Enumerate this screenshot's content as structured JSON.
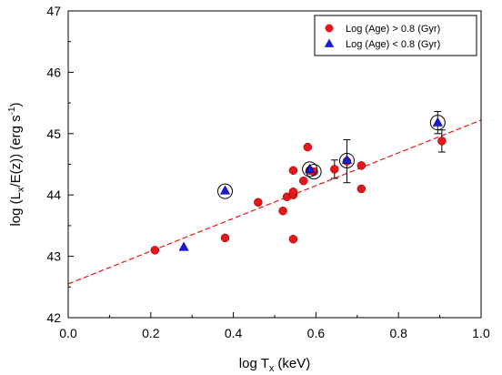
{
  "chart_data": {
    "type": "scatter",
    "xlabel_main": "log T",
    "xlabel_sub": "x",
    "xlabel_unit": "(keV)",
    "ylabel_parts": [
      "log (L",
      "x",
      "/E(z)) (erg s",
      "-1",
      ")"
    ],
    "xlim": [
      0.0,
      1.0
    ],
    "ylim": [
      42,
      47
    ],
    "xticks": [
      0.0,
      0.2,
      0.4,
      0.6,
      0.8,
      1.0
    ],
    "xtick_labels": [
      "0.0",
      "0.2",
      "0.4",
      "0.6",
      "0.8",
      "1.0"
    ],
    "yticks": [
      42,
      43,
      44,
      45,
      46,
      47
    ],
    "ytick_labels": [
      "42",
      "43",
      "44",
      "45",
      "46",
      "47"
    ],
    "grid": false,
    "legend_position": "top-right",
    "series": [
      {
        "name": "Log (Age) > 0.8  (Gyr)",
        "marker": "circle",
        "color": "#e8161b",
        "points": [
          {
            "x": 0.21,
            "y": 43.1
          },
          {
            "x": 0.38,
            "y": 43.3
          },
          {
            "x": 0.46,
            "y": 43.88
          },
          {
            "x": 0.52,
            "y": 43.74
          },
          {
            "x": 0.53,
            "y": 43.97
          },
          {
            "x": 0.545,
            "y": 43.28
          },
          {
            "x": 0.545,
            "y": 44.0
          },
          {
            "x": 0.545,
            "y": 44.05
          },
          {
            "x": 0.545,
            "y": 44.4
          },
          {
            "x": 0.57,
            "y": 44.23
          },
          {
            "x": 0.58,
            "y": 44.78
          },
          {
            "x": 0.585,
            "y": 44.4
          },
          {
            "x": 0.595,
            "y": 44.38
          },
          {
            "x": 0.645,
            "y": 44.42,
            "err": 0.15
          },
          {
            "x": 0.675,
            "y": 44.55,
            "err": 0.35
          },
          {
            "x": 0.71,
            "y": 44.1
          },
          {
            "x": 0.71,
            "y": 44.48
          },
          {
            "x": 0.905,
            "y": 44.88,
            "err": 0.18
          }
        ]
      },
      {
        "name": "Log (Age) < 0.8  (Gyr)",
        "marker": "triangle",
        "color": "#1a1ad6",
        "points": [
          {
            "x": 0.28,
            "y": 43.15
          },
          {
            "x": 0.38,
            "y": 44.07
          },
          {
            "x": 0.585,
            "y": 44.42
          },
          {
            "x": 0.675,
            "y": 44.57
          },
          {
            "x": 0.895,
            "y": 45.18,
            "err": 0.18
          }
        ]
      }
    ],
    "circled_points": [
      {
        "x": 0.38,
        "y": 44.06
      },
      {
        "x": 0.585,
        "y": 44.42
      },
      {
        "x": 0.595,
        "y": 44.38
      },
      {
        "x": 0.675,
        "y": 44.56
      },
      {
        "x": 0.895,
        "y": 45.18
      }
    ],
    "fit_line": {
      "x": [
        0.0,
        1.0
      ],
      "y": [
        42.55,
        45.22
      ],
      "color": "#e8161b",
      "style": "dashed"
    }
  }
}
